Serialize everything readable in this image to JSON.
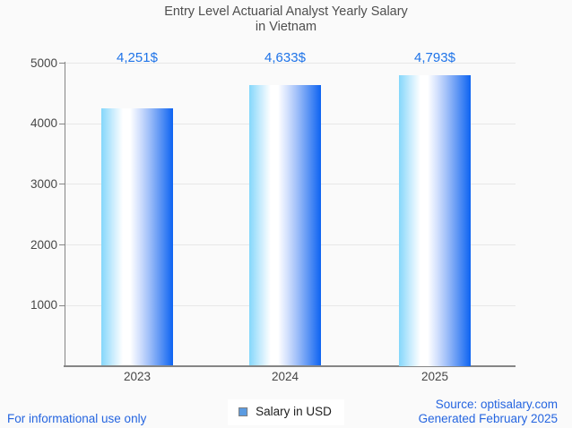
{
  "title": {
    "line1": "Entry Level Actuarial Analyst Yearly Salary",
    "line2": "in Vietnam"
  },
  "chart_data": {
    "type": "bar",
    "title": "Entry Level Actuarial Analyst Yearly Salary in Vietnam",
    "categories": [
      "2023",
      "2024",
      "2025"
    ],
    "series": [
      {
        "name": "Salary in USD",
        "values": [
          4251,
          4633,
          4793
        ]
      }
    ],
    "value_labels": [
      "4,251$",
      "4,633$",
      "4,793$"
    ],
    "xlabel": "",
    "ylabel": "",
    "ylim": [
      0,
      5000
    ],
    "yticks": [
      1000,
      2000,
      3000,
      4000,
      5000
    ],
    "ytick_labels": [
      "1000",
      "2000",
      "3000",
      "4000",
      "5000"
    ],
    "grid": true,
    "legend_position": "bottom-center"
  },
  "legend": {
    "label": "Salary in USD"
  },
  "footer": {
    "left": "For informational use only",
    "source": "Source: optisalary.com",
    "generated": "Generated February 2025"
  },
  "colors": {
    "background": "#fafafa",
    "title_text": "#4f4f4f",
    "axis_text": "#474747",
    "gridline": "#e7e7e7",
    "axis_line": "#858585",
    "value_label_blue": "#1e73e8",
    "footer_blue": "#2565e0",
    "legend_swatch": "#5b9be1",
    "legend_swatch_border": "#7f7f7f",
    "legend_text": "#1d1d1d",
    "legend_bg": "#ffffff",
    "bar_gradient": [
      [
        "0%",
        "#84d7fb"
      ],
      [
        "16%",
        "#c9ecfd"
      ],
      [
        "30%",
        "#ffffff"
      ],
      [
        "40%",
        "#ffffff"
      ],
      [
        "52%",
        "#d8e4fd"
      ],
      [
        "66%",
        "#a3c1f9"
      ],
      [
        "82%",
        "#5e96f4"
      ],
      [
        "100%",
        "#0d63f2"
      ]
    ]
  }
}
